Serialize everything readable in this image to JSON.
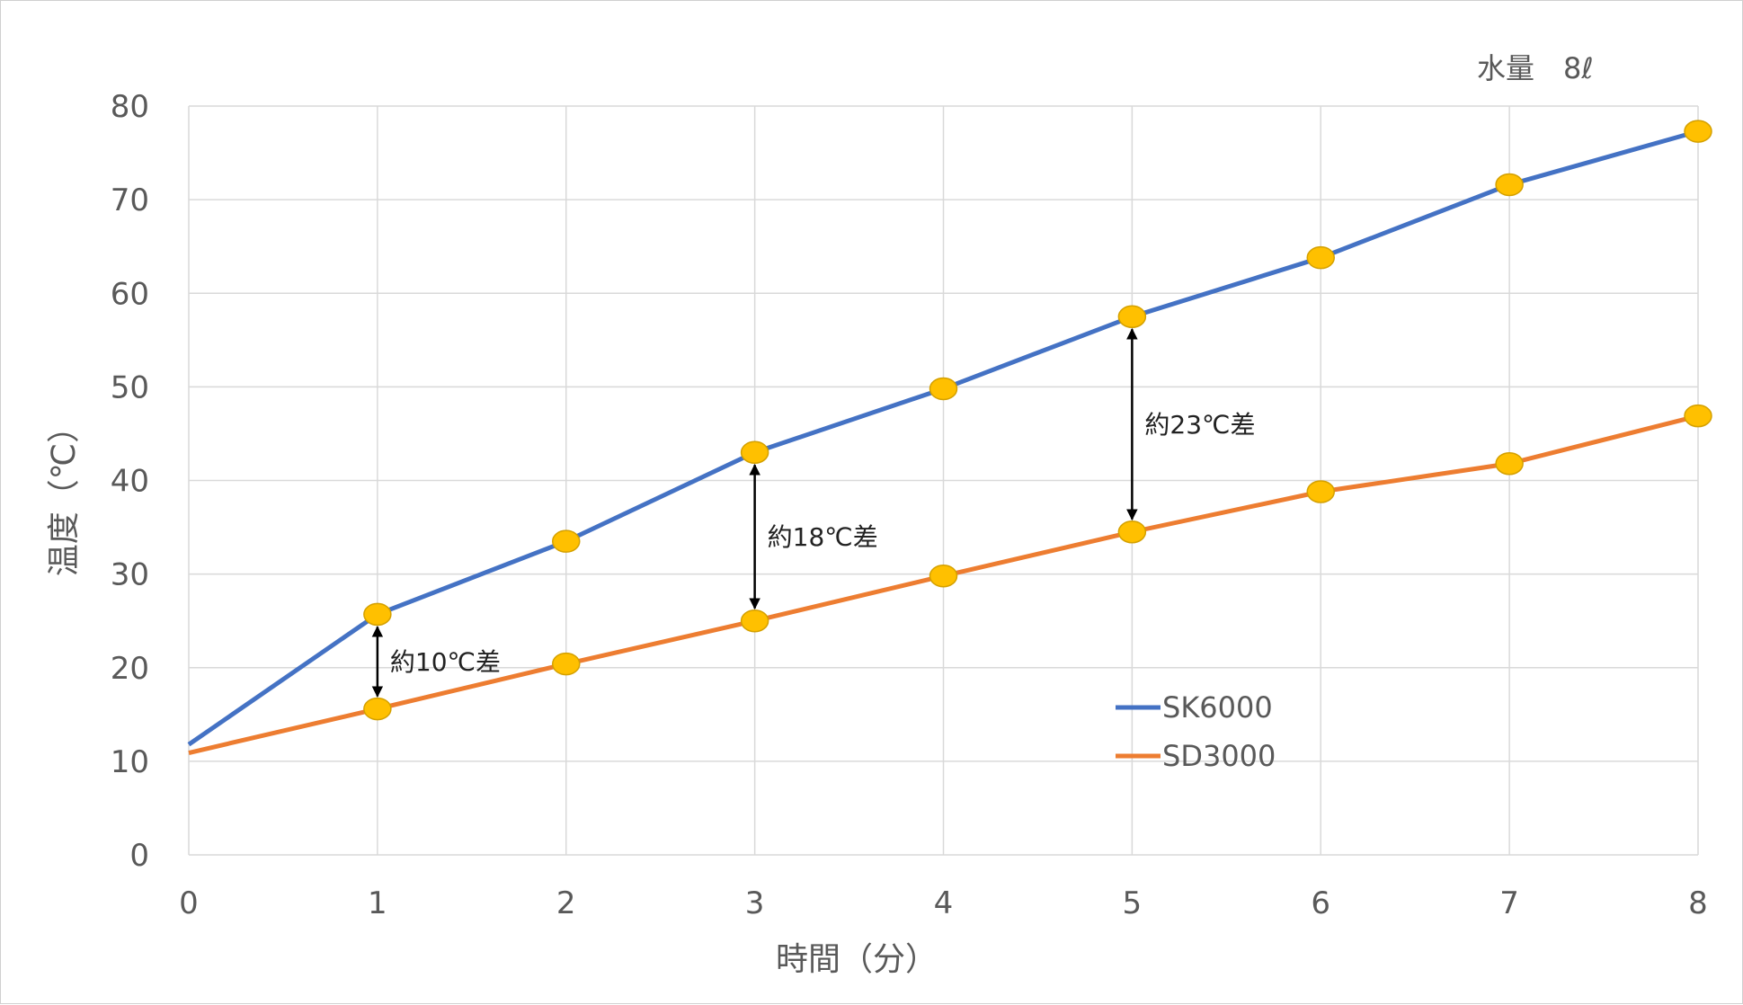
{
  "chart_data": {
    "type": "line",
    "title": "",
    "note": "水量　8ℓ",
    "xlabel": "時間（分）",
    "ylabel": "温度（℃）",
    "xlim": [
      0,
      8
    ],
    "ylim": [
      0,
      80
    ],
    "x_ticks": [
      0,
      1,
      2,
      3,
      4,
      5,
      6,
      7,
      8
    ],
    "y_ticks": [
      0,
      10,
      20,
      30,
      40,
      50,
      60,
      70,
      80
    ],
    "grid": true,
    "legend_position": "center-right",
    "series": [
      {
        "name": "SK6000",
        "color": "#4472c4",
        "points": [
          {
            "x": 0,
            "y": 11.8,
            "marker": false
          },
          {
            "x": 1,
            "y": 25.7,
            "marker": true
          },
          {
            "x": 2,
            "y": 33.5,
            "marker": true
          },
          {
            "x": 3,
            "y": 43.0,
            "marker": true
          },
          {
            "x": 4,
            "y": 49.8,
            "marker": true
          },
          {
            "x": 5,
            "y": 57.5,
            "marker": true
          },
          {
            "x": 6,
            "y": 63.8,
            "marker": true
          },
          {
            "x": 7,
            "y": 71.6,
            "marker": true
          },
          {
            "x": 8,
            "y": 77.3,
            "marker": true
          }
        ]
      },
      {
        "name": "SD3000",
        "color": "#ed7d31",
        "points": [
          {
            "x": 0,
            "y": 10.9,
            "marker": false
          },
          {
            "x": 1,
            "y": 15.6,
            "marker": true
          },
          {
            "x": 2,
            "y": 20.4,
            "marker": true
          },
          {
            "x": 3,
            "y": 25.0,
            "marker": true
          },
          {
            "x": 4,
            "y": 29.8,
            "marker": true
          },
          {
            "x": 5,
            "y": 34.5,
            "marker": true
          },
          {
            "x": 6,
            "y": 38.8,
            "marker": true
          },
          {
            "x": 7,
            "y": 41.8,
            "marker": true
          },
          {
            "x": 8,
            "y": 46.9,
            "marker": true
          }
        ]
      }
    ],
    "marker_color": "#ffc000",
    "marker_stroke": "#d4a000",
    "annotations": [
      {
        "x": 1,
        "y_from": 15.6,
        "y_to": 25.7,
        "label": "約10℃差"
      },
      {
        "x": 3,
        "y_from": 25.0,
        "y_to": 43.0,
        "label": "約18℃差"
      },
      {
        "x": 5,
        "y_from": 34.5,
        "y_to": 57.5,
        "label": "約23℃差"
      }
    ]
  }
}
